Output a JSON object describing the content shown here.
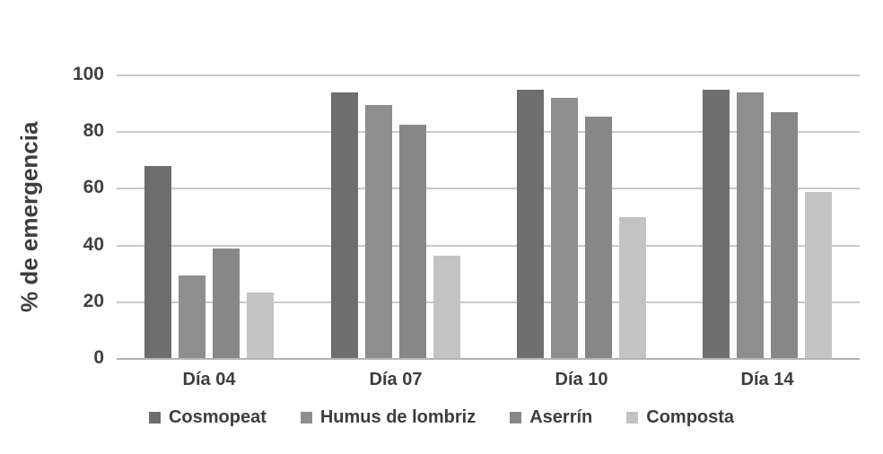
{
  "chart_data": {
    "type": "bar",
    "title": "",
    "xlabel": "",
    "ylabel": "% de emergencia",
    "categories": [
      "Día 04",
      "Día 07",
      "Día 10",
      "Día 14"
    ],
    "series": [
      {
        "name": "Cosmopeat",
        "color": "#6e6e6e",
        "values": [
          68,
          94,
          95,
          95
        ]
      },
      {
        "name": "Humus de lombriz",
        "color": "#8e8e8e",
        "values": [
          29.5,
          89.5,
          92,
          94
        ]
      },
      {
        "name": "Aserrín",
        "color": "#878787",
        "values": [
          39,
          82.5,
          85.5,
          87
        ]
      },
      {
        "name": "Composta",
        "color": "#c3c3c3",
        "values": [
          23.5,
          36.5,
          50,
          59
        ]
      }
    ],
    "ylim": [
      0,
      100
    ],
    "yticks": [
      0,
      20,
      40,
      60,
      80,
      100
    ],
    "grid": true,
    "legend_position": "bottom",
    "colors": {
      "gridline": "#c9c9c9",
      "axis_line": "#b4b4b4",
      "text": "#3d3d3d",
      "background": "#ffffff"
    }
  }
}
